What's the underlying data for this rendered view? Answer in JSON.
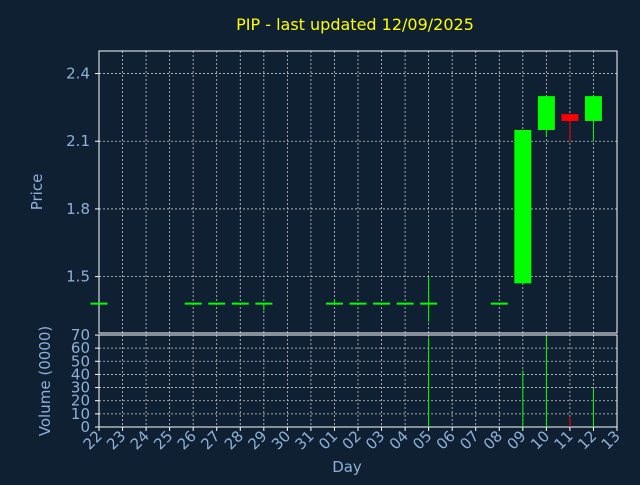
{
  "chart_data": {
    "type": "candlestick",
    "title": "PIP - last updated 12/09/2025",
    "xlabel": "Day",
    "ylabel_price": "Price",
    "ylabel_volume": "Volume (0000)",
    "grid": true,
    "colors": {
      "background": "#0f2033",
      "axis": "#ffffff",
      "grid": "#c8c8c8",
      "title": "#ffff00",
      "labels": "#8fb0d8",
      "up": "#00ff00",
      "down": "#ff0000"
    },
    "x_ticks": [
      "22",
      "23",
      "24",
      "25",
      "26",
      "27",
      "28",
      "29",
      "30",
      "31",
      "01",
      "02",
      "03",
      "04",
      "05",
      "06",
      "07",
      "08",
      "09",
      "10",
      "11",
      "12",
      "13"
    ],
    "price_axis": {
      "ylim": [
        1.25,
        2.5
      ],
      "ticks": [
        "1.5",
        "1.8",
        "2.1",
        "2.4"
      ]
    },
    "volume_axis": {
      "ylim": [
        0,
        70
      ],
      "ticks": [
        "0",
        "10",
        "20",
        "30",
        "40",
        "50",
        "60",
        "70"
      ]
    },
    "candles": [
      {
        "day": "22",
        "open": 1.38,
        "close": 1.38,
        "high": 1.38,
        "low": 1.38,
        "volume": 0
      },
      {
        "day": "26",
        "open": 1.38,
        "close": 1.38,
        "high": 1.38,
        "low": 1.38,
        "volume": 0
      },
      {
        "day": "27",
        "open": 1.38,
        "close": 1.38,
        "high": 1.38,
        "low": 1.38,
        "volume": 0
      },
      {
        "day": "28",
        "open": 1.38,
        "close": 1.38,
        "high": 1.38,
        "low": 1.38,
        "volume": 0
      },
      {
        "day": "29",
        "open": 1.38,
        "close": 1.38,
        "high": 1.38,
        "low": 1.35,
        "volume": 0
      },
      {
        "day": "01",
        "open": 1.38,
        "close": 1.38,
        "high": 1.4,
        "low": 1.38,
        "volume": 0
      },
      {
        "day": "02",
        "open": 1.38,
        "close": 1.38,
        "high": 1.38,
        "low": 1.38,
        "volume": 0
      },
      {
        "day": "03",
        "open": 1.38,
        "close": 1.38,
        "high": 1.38,
        "low": 1.38,
        "volume": 0
      },
      {
        "day": "04",
        "open": 1.38,
        "close": 1.38,
        "high": 1.38,
        "low": 1.38,
        "volume": 0
      },
      {
        "day": "05",
        "open": 1.38,
        "close": 1.38,
        "high": 1.5,
        "low": 1.3,
        "volume": 68
      },
      {
        "day": "08",
        "open": 1.38,
        "close": 1.38,
        "high": 1.38,
        "low": 1.38,
        "volume": 0
      },
      {
        "day": "09",
        "open": 1.47,
        "close": 2.15,
        "high": 2.15,
        "low": 1.47,
        "volume": 43
      },
      {
        "day": "10",
        "open": 2.15,
        "close": 2.3,
        "high": 2.3,
        "low": 2.12,
        "volume": 69
      },
      {
        "day": "11",
        "open": 2.22,
        "close": 2.19,
        "high": 2.22,
        "low": 2.1,
        "volume": 8
      },
      {
        "day": "12",
        "open": 2.19,
        "close": 2.3,
        "high": 2.3,
        "low": 2.1,
        "volume": 29
      }
    ]
  }
}
